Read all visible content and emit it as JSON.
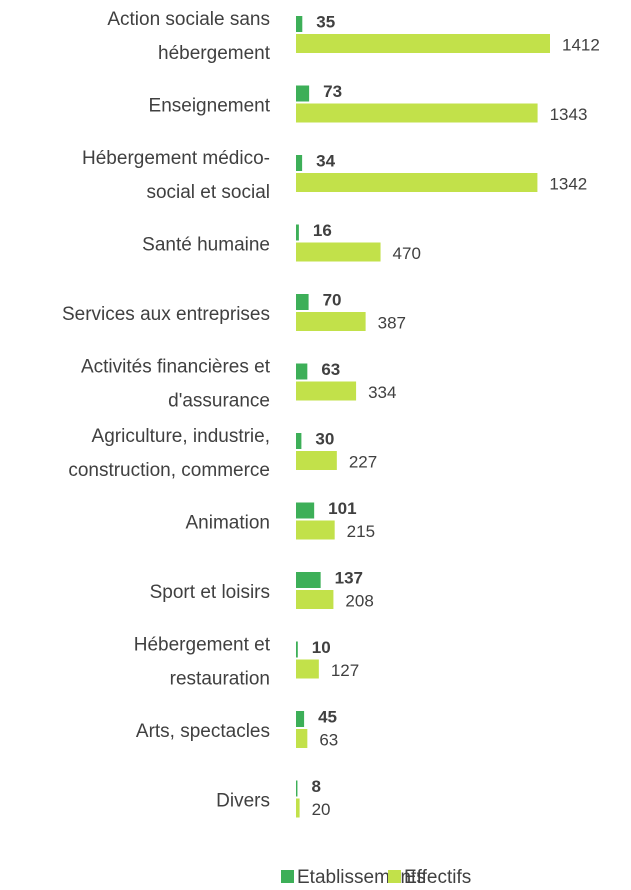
{
  "chart_data": {
    "type": "hbar",
    "categories": [
      [
        "Action sociale sans",
        "hébergement"
      ],
      [
        "Enseignement"
      ],
      [
        "Hébergement médico-",
        "social et social"
      ],
      [
        "Santé humaine"
      ],
      [
        "Services aux entreprises"
      ],
      [
        "Activités financières et",
        "d'assurance"
      ],
      [
        "Agriculture, industrie,",
        "construction, commerce"
      ],
      [
        "Animation"
      ],
      [
        "Sport et loisirs"
      ],
      [
        "Hébergement et",
        "restauration"
      ],
      [
        "Arts, spectacles"
      ],
      [
        "Divers"
      ]
    ],
    "series": [
      {
        "name": "Etablissements",
        "color": "#3daf58",
        "values": [
          35,
          73,
          34,
          16,
          70,
          63,
          30,
          101,
          137,
          10,
          45,
          8
        ]
      },
      {
        "name": "Effectifs",
        "color": "#c2e14a",
        "values": [
          1412,
          1343,
          1342,
          470,
          387,
          334,
          227,
          215,
          208,
          127,
          63,
          20
        ]
      }
    ],
    "legend": "bottom"
  }
}
